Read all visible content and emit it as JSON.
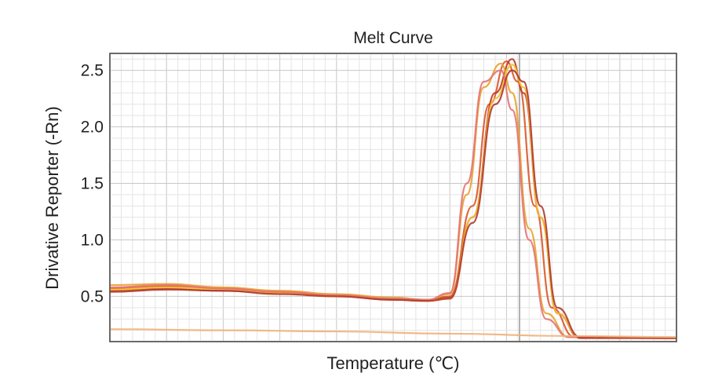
{
  "chart_data": {
    "type": "line",
    "title": "Melt Curve",
    "xlabel": "Temperature (℃)",
    "ylabel": "Drivative Reporter (-Rn)",
    "x_ticks": [],
    "y_ticks": [
      "0.5",
      "1.0",
      "1.5",
      "2.0",
      "2.5"
    ],
    "xlim": [
      0,
      100
    ],
    "ylim": [
      0.1,
      2.65
    ],
    "grid": true,
    "peak_line_x": 72.3,
    "series": [
      {
        "color": "#d9582a",
        "values": [
          [
            0,
            0.57
          ],
          [
            10,
            0.59
          ],
          [
            20,
            0.57
          ],
          [
            30,
            0.54
          ],
          [
            40,
            0.51
          ],
          [
            50,
            0.48
          ],
          [
            56,
            0.47
          ],
          [
            60,
            0.5
          ],
          [
            64,
            1.3
          ],
          [
            67,
            2.2
          ],
          [
            70,
            2.58
          ],
          [
            72,
            2.4
          ],
          [
            75,
            1.3
          ],
          [
            78,
            0.4
          ],
          [
            82,
            0.14
          ],
          [
            100,
            0.13
          ]
        ]
      },
      {
        "color": "#c0392b",
        "values": [
          [
            0,
            0.55
          ],
          [
            10,
            0.57
          ],
          [
            20,
            0.55
          ],
          [
            30,
            0.53
          ],
          [
            40,
            0.5
          ],
          [
            50,
            0.47
          ],
          [
            56,
            0.46
          ],
          [
            60,
            0.49
          ],
          [
            64,
            1.2
          ],
          [
            68,
            2.3
          ],
          [
            71,
            2.6
          ],
          [
            73,
            2.3
          ],
          [
            76,
            1.2
          ],
          [
            79,
            0.35
          ],
          [
            83,
            0.13
          ],
          [
            100,
            0.13
          ]
        ]
      },
      {
        "color": "#e8a32e",
        "values": [
          [
            0,
            0.6
          ],
          [
            10,
            0.61
          ],
          [
            20,
            0.58
          ],
          [
            30,
            0.55
          ],
          [
            40,
            0.52
          ],
          [
            50,
            0.49
          ],
          [
            56,
            0.47
          ],
          [
            60,
            0.52
          ],
          [
            63,
            1.4
          ],
          [
            66,
            2.35
          ],
          [
            69,
            2.56
          ],
          [
            71,
            2.3
          ],
          [
            74,
            1.1
          ],
          [
            77,
            0.35
          ],
          [
            81,
            0.14
          ],
          [
            100,
            0.13
          ]
        ]
      },
      {
        "color": "#f2c230",
        "values": [
          [
            0,
            0.56
          ],
          [
            10,
            0.58
          ],
          [
            20,
            0.56
          ],
          [
            30,
            0.53
          ],
          [
            40,
            0.5
          ],
          [
            50,
            0.48
          ],
          [
            56,
            0.46
          ],
          [
            60,
            0.48
          ],
          [
            64,
            1.2
          ],
          [
            68,
            2.25
          ],
          [
            71,
            2.55
          ],
          [
            73,
            2.35
          ],
          [
            76,
            1.2
          ],
          [
            79,
            0.35
          ],
          [
            83,
            0.14
          ],
          [
            100,
            0.13
          ]
        ]
      },
      {
        "color": "#e57373",
        "values": [
          [
            0,
            0.58
          ],
          [
            10,
            0.6
          ],
          [
            20,
            0.57
          ],
          [
            30,
            0.54
          ],
          [
            40,
            0.51
          ],
          [
            50,
            0.48
          ],
          [
            56,
            0.47
          ],
          [
            60,
            0.53
          ],
          [
            63,
            1.5
          ],
          [
            66,
            2.4
          ],
          [
            69,
            2.5
          ],
          [
            71,
            2.15
          ],
          [
            74,
            1.0
          ],
          [
            77,
            0.3
          ],
          [
            81,
            0.14
          ],
          [
            100,
            0.13
          ]
        ]
      },
      {
        "color": "#b03a2e",
        "values": [
          [
            0,
            0.54
          ],
          [
            10,
            0.56
          ],
          [
            20,
            0.55
          ],
          [
            30,
            0.52
          ],
          [
            40,
            0.5
          ],
          [
            50,
            0.47
          ],
          [
            56,
            0.46
          ],
          [
            60,
            0.48
          ],
          [
            64,
            1.15
          ],
          [
            68,
            2.2
          ],
          [
            71,
            2.5
          ],
          [
            73,
            2.4
          ],
          [
            76,
            1.3
          ],
          [
            79,
            0.4
          ],
          [
            83,
            0.14
          ],
          [
            100,
            0.13
          ]
        ]
      },
      {
        "color": "#f0b27a",
        "values": [
          [
            0,
            0.21
          ],
          [
            20,
            0.2
          ],
          [
            40,
            0.19
          ],
          [
            60,
            0.17
          ],
          [
            80,
            0.15
          ],
          [
            100,
            0.14
          ]
        ]
      }
    ]
  }
}
